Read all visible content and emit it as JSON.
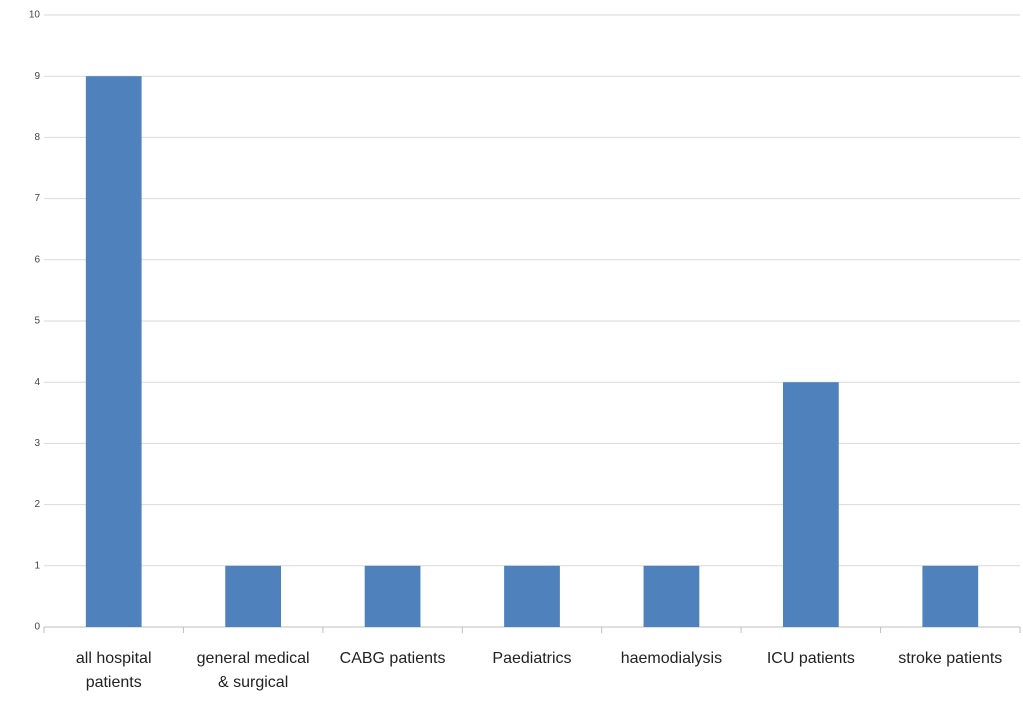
{
  "chart_data": {
    "type": "bar",
    "categories": [
      "all hospital patients",
      "general medical & surgical",
      "CABG patients",
      "Paediatrics",
      "haemodialysis",
      "ICU patients",
      "stroke patients"
    ],
    "values": [
      9,
      1,
      1,
      1,
      1,
      4,
      1
    ],
    "color": "#4f81bd",
    "ylim": [
      0,
      10
    ],
    "yticks": [
      0,
      1,
      2,
      3,
      4,
      5,
      6,
      7,
      8,
      9,
      10
    ],
    "grid": true
  }
}
